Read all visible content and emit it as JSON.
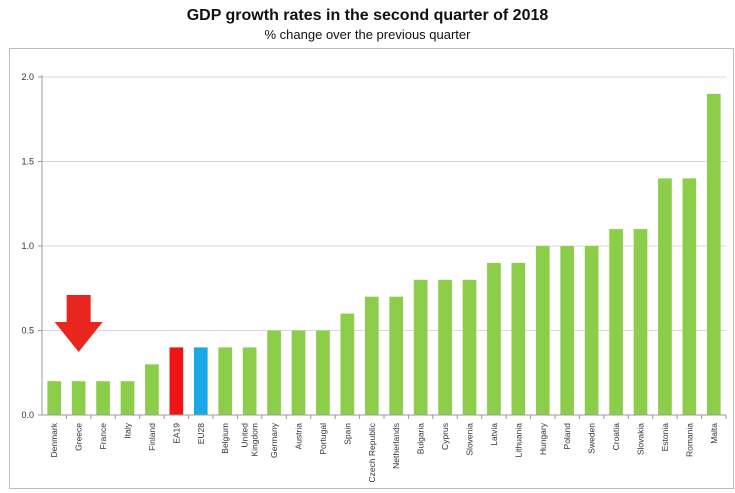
{
  "chart_data": {
    "type": "bar",
    "title": "GDP growth rates in the second quarter of 2018",
    "subtitle": "% change over the previous quarter",
    "xlabel": "",
    "ylabel": "",
    "ylim": [
      0,
      2.0
    ],
    "yticks": [
      "0.0",
      "0.5",
      "1.0",
      "1.5",
      "2.0"
    ],
    "ytick_values": [
      0,
      0.5,
      1.0,
      1.5,
      2.0
    ],
    "grid": true,
    "legend": "none",
    "categories": [
      "Denmark",
      "Greece",
      "France",
      "Italy",
      "Finland",
      "EA19",
      "EU28",
      "Belgium",
      "United Kingdom",
      "Germany",
      "Austria",
      "Portugal",
      "Spain",
      "Czech Republic",
      "Netherlands",
      "Bulgaria",
      "Cyprus",
      "Slovenia",
      "Latvia",
      "Lithuania",
      "Hungary",
      "Poland",
      "Sweden",
      "Croatia",
      "Slovakia",
      "Estonia",
      "Romania",
      "Malta"
    ],
    "values": [
      0.2,
      0.2,
      0.2,
      0.2,
      0.3,
      0.4,
      0.4,
      0.4,
      0.4,
      0.5,
      0.5,
      0.5,
      0.6,
      0.7,
      0.7,
      0.8,
      0.8,
      0.8,
      0.9,
      0.9,
      1.0,
      1.0,
      1.0,
      1.1,
      1.1,
      1.4,
      1.4,
      1.9
    ],
    "bar_colors": {
      "default": "#8cce4a",
      "EA19": "#f01414",
      "EU28": "#1aa9e6"
    },
    "annotations": [
      {
        "type": "arrow-down",
        "target": "Greece",
        "color": "#e8251f"
      }
    ]
  }
}
